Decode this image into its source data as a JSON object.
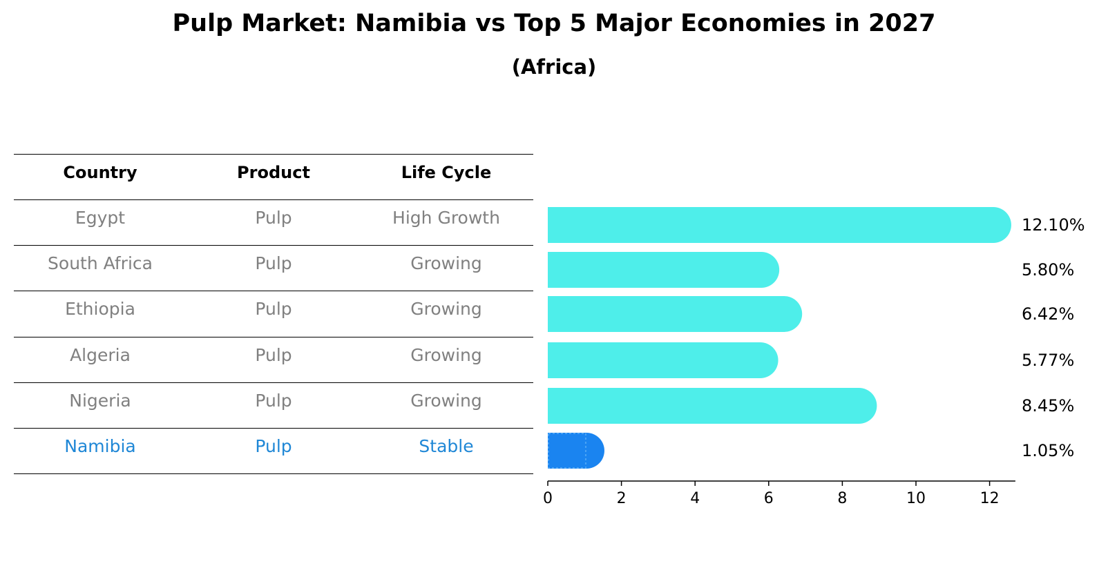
{
  "title": "Pulp Market: Namibia vs Top 5 Major Economies in 2027",
  "subtitle": "(Africa)",
  "table": {
    "headers": [
      "Country",
      "Product",
      "Life Cycle"
    ],
    "rows": [
      {
        "country": "Egypt",
        "product": "Pulp",
        "life_cycle": "High Growth"
      },
      {
        "country": "South Africa",
        "product": "Pulp",
        "life_cycle": "Growing"
      },
      {
        "country": "Ethiopia",
        "product": "Pulp",
        "life_cycle": "Growing"
      },
      {
        "country": "Algeria",
        "product": "Pulp",
        "life_cycle": "Growing"
      },
      {
        "country": "Nigeria",
        "product": "Pulp",
        "life_cycle": "Growing"
      },
      {
        "country": "Namibia",
        "product": "Pulp",
        "life_cycle": "Stable"
      }
    ]
  },
  "colors": {
    "bar": "#4eeeea",
    "highlight_bar": "#1a84f0",
    "table_text": "#808080",
    "highlight_text": "#1f87d6"
  },
  "chart_data": {
    "type": "bar",
    "orientation": "horizontal",
    "categories": [
      "Egypt",
      "South Africa",
      "Ethiopia",
      "Algeria",
      "Nigeria",
      "Namibia"
    ],
    "values": [
      12.1,
      5.8,
      6.42,
      5.77,
      8.45,
      1.05
    ],
    "value_labels": [
      "12.10%",
      "5.80%",
      "6.42%",
      "5.77%",
      "8.45%",
      "1.05%"
    ],
    "highlight": "Namibia",
    "xlim": [
      0,
      12.7
    ],
    "xticks": [
      0,
      2,
      4,
      6,
      8,
      10,
      12
    ],
    "xlabel": "",
    "ylabel": "",
    "grid": false
  }
}
